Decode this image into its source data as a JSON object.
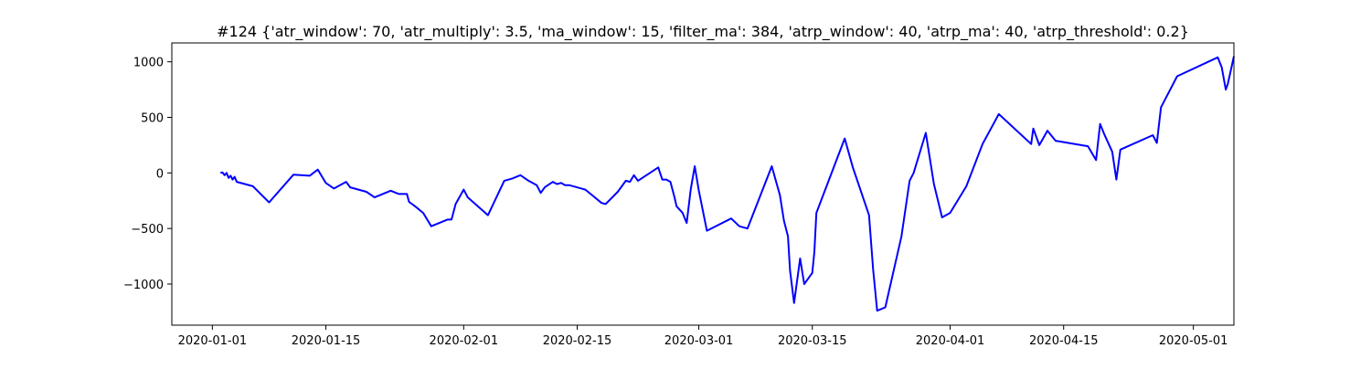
{
  "chart_data": {
    "type": "line",
    "title": "#124 {'atr_window': 70, 'atr_multiply': 3.5, 'ma_window': 15, 'filter_ma': 384, 'atrp_window': 40, 'atrp_ma': 40, 'atrp_threshold': 0.2}",
    "xlabel": "",
    "ylabel": "",
    "x_axis_type": "date",
    "xlim": [
      "2019-12-27",
      "2020-05-06"
    ],
    "ylim": [
      -1370,
      1170
    ],
    "x_ticks": [
      "2020-01-01",
      "2020-01-15",
      "2020-02-01",
      "2020-02-15",
      "2020-03-01",
      "2020-03-15",
      "2020-04-01",
      "2020-04-15",
      "2020-05-01"
    ],
    "x_tick_labels": [
      "2020-01-01",
      "2020-01-15",
      "2020-02-01",
      "2020-02-15",
      "2020-03-01",
      "2020-03-15",
      "2020-04-01",
      "2020-04-15",
      "2020-05-01"
    ],
    "y_ticks": [
      -1000,
      -500,
      0,
      500,
      1000
    ],
    "y_tick_labels": [
      "−1000",
      "−500",
      "0",
      "500",
      "1000"
    ],
    "grid": false,
    "legend": "none",
    "series": [
      {
        "color": "#0000ff",
        "points": [
          [
            "2020-01-02",
            0
          ],
          [
            "2020-01-02T06:00",
            5
          ],
          [
            "2020-01-02T12:00",
            -20
          ],
          [
            "2020-01-02T18:00",
            0
          ],
          [
            "2020-01-03",
            -45
          ],
          [
            "2020-01-03T06:00",
            -25
          ],
          [
            "2020-01-03T12:00",
            -60
          ],
          [
            "2020-01-03T18:00",
            -35
          ],
          [
            "2020-01-04",
            -80
          ],
          [
            "2020-01-06",
            -120
          ],
          [
            "2020-01-08",
            -265
          ],
          [
            "2020-01-11",
            -15
          ],
          [
            "2020-01-13",
            -25
          ],
          [
            "2020-01-14",
            30
          ],
          [
            "2020-01-14T12:00",
            -30
          ],
          [
            "2020-01-15",
            -90
          ],
          [
            "2020-01-16",
            -140
          ],
          [
            "2020-01-17",
            -100
          ],
          [
            "2020-01-17T12:00",
            -80
          ],
          [
            "2020-01-18",
            -130
          ],
          [
            "2020-01-20",
            -170
          ],
          [
            "2020-01-21",
            -220
          ],
          [
            "2020-01-23",
            -160
          ],
          [
            "2020-01-24",
            -190
          ],
          [
            "2020-01-25",
            -190
          ],
          [
            "2020-01-25T06:00",
            -260
          ],
          [
            "2020-01-26",
            -300
          ],
          [
            "2020-01-27",
            -360
          ],
          [
            "2020-01-28",
            -480
          ],
          [
            "2020-01-30",
            -420
          ],
          [
            "2020-01-30T12:00",
            -420
          ],
          [
            "2020-01-31",
            -280
          ],
          [
            "2020-02-01",
            -150
          ],
          [
            "2020-02-01T12:00",
            -220
          ],
          [
            "2020-02-04",
            -380
          ],
          [
            "2020-02-06",
            -70
          ],
          [
            "2020-02-07",
            -50
          ],
          [
            "2020-02-08",
            -20
          ],
          [
            "2020-02-09",
            -70
          ],
          [
            "2020-02-10",
            -110
          ],
          [
            "2020-02-10T12:00",
            -180
          ],
          [
            "2020-02-11",
            -130
          ],
          [
            "2020-02-12",
            -80
          ],
          [
            "2020-02-12T12:00",
            -100
          ],
          [
            "2020-02-13",
            -90
          ],
          [
            "2020-02-13T12:00",
            -110
          ],
          [
            "2020-02-14",
            -110
          ],
          [
            "2020-02-16",
            -150
          ],
          [
            "2020-02-17",
            -210
          ],
          [
            "2020-02-18",
            -270
          ],
          [
            "2020-02-18T12:00",
            -280
          ],
          [
            "2020-02-20",
            -170
          ],
          [
            "2020-02-21",
            -70
          ],
          [
            "2020-02-21T12:00",
            -80
          ],
          [
            "2020-02-22",
            -20
          ],
          [
            "2020-02-22T12:00",
            -70
          ],
          [
            "2020-02-25",
            50
          ],
          [
            "2020-02-25T12:00",
            -60
          ],
          [
            "2020-02-26",
            -60
          ],
          [
            "2020-02-26T12:00",
            -80
          ],
          [
            "2020-02-27",
            -220
          ],
          [
            "2020-02-27T06:00",
            -300
          ],
          [
            "2020-02-28",
            -360
          ],
          [
            "2020-02-28T12:00",
            -450
          ],
          [
            "2020-02-29",
            -150
          ],
          [
            "2020-02-29T12:00",
            60
          ],
          [
            "2020-03-01",
            -160
          ],
          [
            "2020-03-02",
            -520
          ],
          [
            "2020-03-05",
            -410
          ],
          [
            "2020-03-06",
            -480
          ],
          [
            "2020-03-07",
            -500
          ],
          [
            "2020-03-10",
            60
          ],
          [
            "2020-03-11",
            -200
          ],
          [
            "2020-03-11T12:00",
            -430
          ],
          [
            "2020-03-12",
            -570
          ],
          [
            "2020-03-12T06:00",
            -880
          ],
          [
            "2020-03-12T18:00",
            -1170
          ],
          [
            "2020-03-13T12:00",
            -770
          ],
          [
            "2020-03-14",
            -1000
          ],
          [
            "2020-03-15",
            -900
          ],
          [
            "2020-03-15T06:00",
            -710
          ],
          [
            "2020-03-15T12:00",
            -360
          ],
          [
            "2020-03-19",
            310
          ],
          [
            "2020-03-20",
            50
          ],
          [
            "2020-03-22",
            -380
          ],
          [
            "2020-03-22T12:00",
            -870
          ],
          [
            "2020-03-23",
            -1240
          ],
          [
            "2020-03-24",
            -1210
          ],
          [
            "2020-03-26",
            -570
          ],
          [
            "2020-03-27",
            -70
          ],
          [
            "2020-03-27T12:00",
            0
          ],
          [
            "2020-03-29",
            360
          ],
          [
            "2020-03-30",
            -100
          ],
          [
            "2020-03-31",
            -400
          ],
          [
            "2020-04-01",
            -360
          ],
          [
            "2020-04-03",
            -120
          ],
          [
            "2020-04-05",
            260
          ],
          [
            "2020-04-07",
            530
          ],
          [
            "2020-04-11",
            260
          ],
          [
            "2020-04-11T06:00",
            400
          ],
          [
            "2020-04-12",
            250
          ],
          [
            "2020-04-13",
            380
          ],
          [
            "2020-04-14",
            290
          ],
          [
            "2020-04-18",
            240
          ],
          [
            "2020-04-19",
            115
          ],
          [
            "2020-04-19T12:00",
            440
          ],
          [
            "2020-04-20",
            350
          ],
          [
            "2020-04-21",
            190
          ],
          [
            "2020-04-21T12:00",
            -60
          ],
          [
            "2020-04-22",
            210
          ],
          [
            "2020-04-26",
            340
          ],
          [
            "2020-04-26T12:00",
            270
          ],
          [
            "2020-04-27",
            590
          ],
          [
            "2020-04-29",
            870
          ],
          [
            "2020-05-04",
            1040
          ],
          [
            "2020-05-04T12:00",
            950
          ],
          [
            "2020-05-05",
            750
          ],
          [
            "2020-05-05T06:00",
            800
          ],
          [
            "2020-05-06",
            1050
          ]
        ]
      }
    ]
  }
}
